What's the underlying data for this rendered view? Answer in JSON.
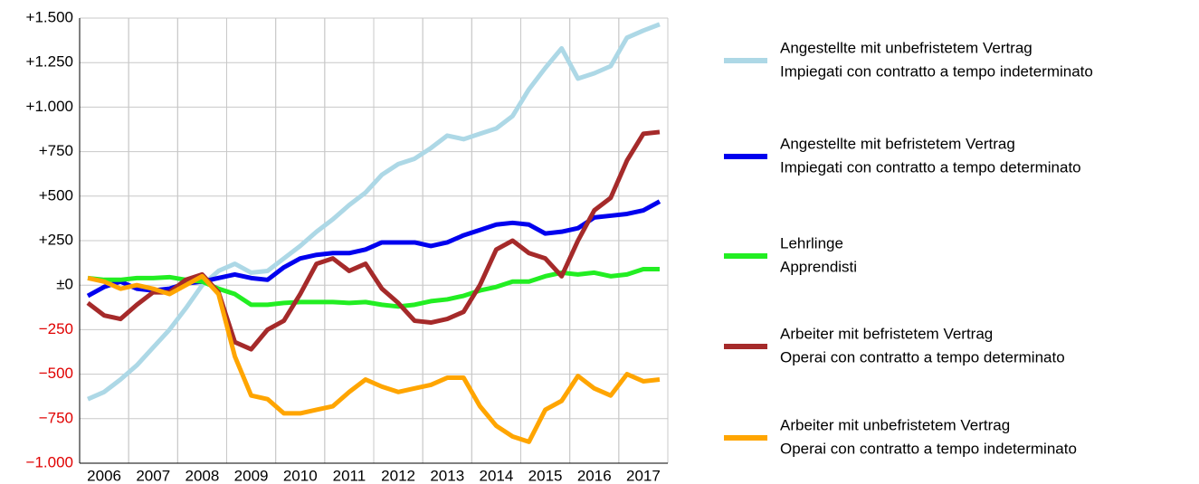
{
  "chart_data": {
    "type": "line",
    "categories": [
      null,
      "2006",
      null,
      null,
      "2007",
      null,
      null,
      "2008",
      null,
      null,
      "2009",
      null,
      null,
      "2010",
      null,
      null,
      "2011",
      null,
      null,
      "2012",
      null,
      null,
      "2013",
      null,
      null,
      "2014",
      null,
      null,
      "2015",
      null,
      null,
      "2016",
      null,
      null,
      "2017",
      null
    ],
    "ylim": [
      -1000,
      1500
    ],
    "yticks": [
      {
        "value": -1000,
        "label": "−1.000"
      },
      {
        "value": -750,
        "label": "−750"
      },
      {
        "value": -500,
        "label": "−500"
      },
      {
        "value": -250,
        "label": "−250"
      },
      {
        "value": 0,
        "label": "±0"
      },
      {
        "value": 250,
        "label": "+250"
      },
      {
        "value": 500,
        "label": "+500"
      },
      {
        "value": 750,
        "label": "+750"
      },
      {
        "value": 1000,
        "label": "+1.000"
      },
      {
        "value": 1250,
        "label": "+1.250"
      },
      {
        "value": 1500,
        "label": "+1.500"
      }
    ],
    "negative_tick_color": "#e00000",
    "grid": true,
    "series": [
      {
        "name": [
          "Angestellte mit unbefristetem Vertrag",
          "Impiegati con contratto a tempo indeterminato"
        ],
        "color": "#add8e6",
        "values": [
          -640,
          -600,
          -530,
          -450,
          -350,
          -250,
          -130,
          0,
          80,
          120,
          70,
          80,
          150,
          220,
          300,
          370,
          450,
          520,
          620,
          680,
          710,
          770,
          840,
          820,
          850,
          880,
          950,
          1100,
          1220,
          1330,
          1160,
          1190,
          1230,
          1390,
          1430,
          1465
        ]
      },
      {
        "name": [
          "Angestellte mit befristetem Vertrag",
          "Impiegati con contratto a tempo determinato"
        ],
        "color": "#0000ee",
        "values": [
          -60,
          -10,
          20,
          -20,
          -30,
          -20,
          10,
          20,
          40,
          60,
          40,
          30,
          100,
          150,
          170,
          180,
          180,
          200,
          240,
          240,
          240,
          220,
          240,
          280,
          310,
          340,
          350,
          340,
          290,
          300,
          320,
          380,
          390,
          400,
          420,
          470
        ]
      },
      {
        "name": [
          "Lehrlinge",
          "Apprendisti"
        ],
        "color": "#22ee22",
        "values": [
          40,
          30,
          30,
          40,
          40,
          45,
          30,
          20,
          -20,
          -50,
          -110,
          -110,
          -100,
          -95,
          -95,
          -95,
          -100,
          -95,
          -110,
          -120,
          -110,
          -90,
          -80,
          -60,
          -30,
          -10,
          20,
          20,
          50,
          70,
          60,
          70,
          50,
          60,
          90,
          90
        ]
      },
      {
        "name": [
          "Arbeiter mit befristetem Vertrag",
          "Operai con contratto a tempo determinato"
        ],
        "color": "#a52a2a",
        "values": [
          -100,
          -170,
          -190,
          -110,
          -40,
          -40,
          30,
          60,
          -40,
          -320,
          -360,
          -250,
          -200,
          -50,
          120,
          150,
          80,
          120,
          -20,
          -100,
          -200,
          -210,
          -190,
          -150,
          0,
          200,
          250,
          180,
          150,
          50,
          250,
          420,
          490,
          700,
          850,
          860
        ]
      },
      {
        "name": [
          "Arbeiter mit unbefristetem Vertrag",
          "Operai con contratto a tempo indeterminato"
        ],
        "color": "#ffa500",
        "values": [
          40,
          20,
          -20,
          0,
          -20,
          -50,
          0,
          50,
          -50,
          -400,
          -620,
          -640,
          -720,
          -720,
          -700,
          -680,
          -600,
          -530,
          -570,
          -600,
          -580,
          -560,
          -520,
          -520,
          -680,
          -790,
          -850,
          -880,
          -700,
          -650,
          -510,
          -580,
          -620,
          -500,
          -540,
          -530
        ]
      }
    ]
  }
}
